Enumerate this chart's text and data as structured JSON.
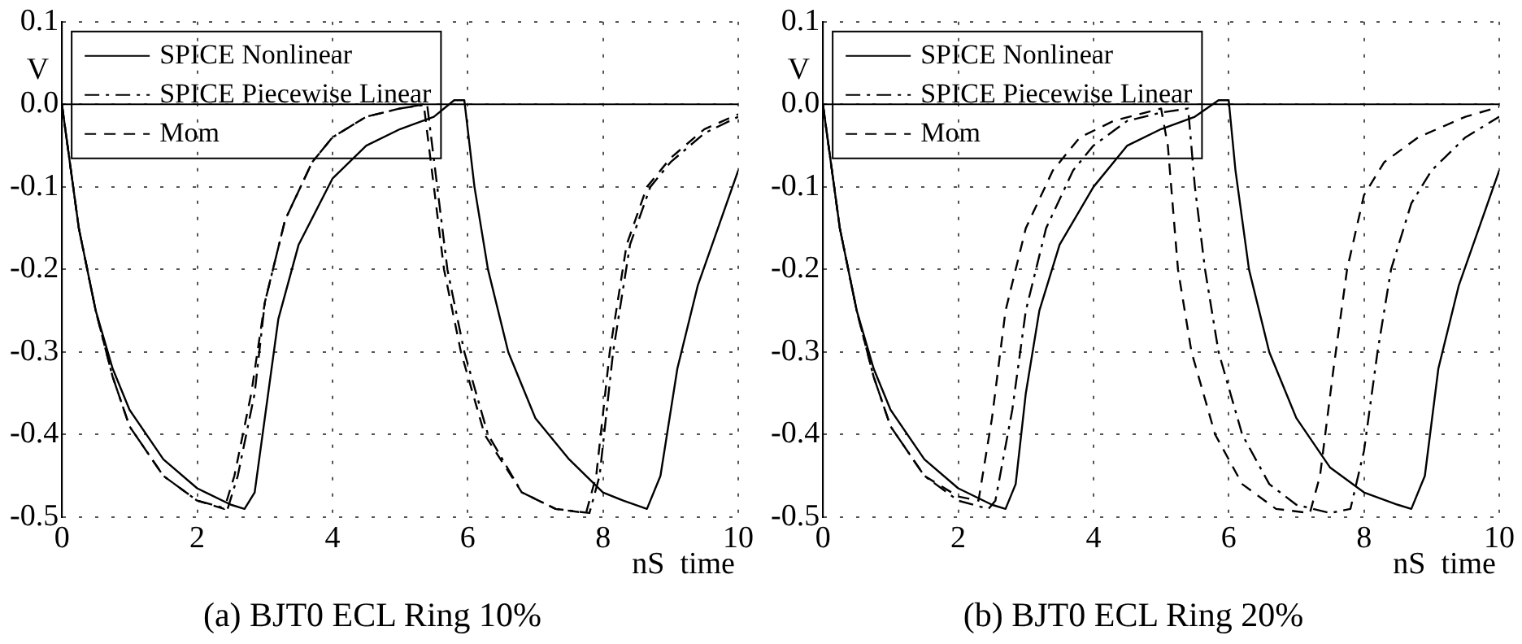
{
  "chart_data": [
    {
      "type": "line",
      "title": "(a) BJT0 ECL Ring 10%",
      "xlabel": "nS  time",
      "ylabel": "V",
      "xlim": [
        0,
        10
      ],
      "xticks": [
        0,
        2,
        4,
        6,
        8,
        10
      ],
      "ylim": [
        -0.5,
        0.1
      ],
      "yticks": [
        0.1,
        {
          "value": 0,
          "label": "0.0"
        },
        -0.1,
        -0.2,
        -0.3,
        -0.4,
        -0.5
      ],
      "grid": true,
      "legend": "top left",
      "marker": "none",
      "ref_lines": [
        {
          "axis": "y",
          "value": 0,
          "color": "#000000"
        }
      ],
      "series": [
        {
          "name": "SPICE Nonlinear",
          "color": "#000000",
          "line_style": "solid",
          "x": [
            0,
            0.25,
            0.5,
            0.75,
            1,
            1.5,
            2,
            2.5,
            2.7,
            2.85,
            3,
            3.2,
            3.5,
            4,
            4.5,
            5,
            5.5,
            5.8,
            5.95,
            6.1,
            6.3,
            6.6,
            7,
            7.5,
            8,
            8.3,
            8.65,
            8.85,
            9.1,
            9.4,
            9.7,
            10
          ],
          "values": [
            0,
            -0.15,
            -0.25,
            -0.32,
            -0.37,
            -0.43,
            -0.465,
            -0.485,
            -0.49,
            -0.47,
            -0.38,
            -0.26,
            -0.17,
            -0.09,
            -0.05,
            -0.03,
            -0.015,
            0.005,
            0.005,
            -0.1,
            -0.2,
            -0.3,
            -0.38,
            -0.43,
            -0.47,
            -0.48,
            -0.49,
            -0.45,
            -0.32,
            -0.22,
            -0.15,
            -0.08
          ]
        },
        {
          "name": "SPICE Piecewise Linear",
          "color": "#000000",
          "line_style": "dashdot",
          "x": [
            0,
            0.25,
            0.5,
            0.75,
            1,
            1.5,
            2,
            2.45,
            2.6,
            2.85,
            3,
            3.3,
            3.7,
            4,
            4.5,
            5,
            5.4,
            5.55,
            5.7,
            5.95,
            6.3,
            6.8,
            7.3,
            7.8,
            7.95,
            8.15,
            8.4,
            8.7,
            9,
            9.5,
            10
          ],
          "values": [
            0,
            -0.15,
            -0.25,
            -0.33,
            -0.39,
            -0.45,
            -0.48,
            -0.49,
            -0.45,
            -0.35,
            -0.24,
            -0.14,
            -0.07,
            -0.04,
            -0.015,
            -0.005,
            0,
            -0.1,
            -0.2,
            -0.3,
            -0.4,
            -0.47,
            -0.49,
            -0.495,
            -0.45,
            -0.3,
            -0.17,
            -0.1,
            -0.07,
            -0.035,
            -0.015
          ]
        },
        {
          "name": "Mom",
          "color": "#000000",
          "line_style": "dashed",
          "x": [
            0,
            0.25,
            0.5,
            0.75,
            1,
            1.5,
            2,
            2.4,
            2.55,
            2.8,
            3,
            3.3,
            3.7,
            4,
            4.5,
            5,
            5.35,
            5.5,
            5.65,
            5.9,
            6.25,
            6.8,
            7.3,
            7.75,
            7.9,
            8.1,
            8.35,
            8.65,
            9,
            9.5,
            10
          ],
          "values": [
            0,
            -0.15,
            -0.25,
            -0.33,
            -0.39,
            -0.45,
            -0.48,
            -0.49,
            -0.45,
            -0.35,
            -0.24,
            -0.14,
            -0.07,
            -0.04,
            -0.015,
            -0.005,
            0,
            -0.1,
            -0.2,
            -0.3,
            -0.4,
            -0.47,
            -0.49,
            -0.495,
            -0.45,
            -0.3,
            -0.17,
            -0.1,
            -0.065,
            -0.03,
            -0.012
          ]
        }
      ]
    },
    {
      "type": "line",
      "title": "(b) BJT0 ECL Ring 20%",
      "xlabel": "nS  time",
      "ylabel": "V",
      "xlim": [
        0,
        10
      ],
      "xticks": [
        0,
        2,
        4,
        6,
        8,
        10
      ],
      "ylim": [
        -0.5,
        0.1
      ],
      "yticks": [
        0.1,
        {
          "value": 0,
          "label": "0.0"
        },
        -0.1,
        -0.2,
        -0.3,
        -0.4,
        -0.5
      ],
      "grid": true,
      "legend": "top left",
      "marker": "none",
      "ref_lines": [
        {
          "axis": "y",
          "value": 0,
          "color": "#000000"
        }
      ],
      "series": [
        {
          "name": "SPICE Nonlinear",
          "color": "#000000",
          "line_style": "solid",
          "x": [
            0,
            0.25,
            0.5,
            0.75,
            1,
            1.5,
            2,
            2.5,
            2.7,
            2.85,
            3,
            3.2,
            3.5,
            4,
            4.5,
            5,
            5.5,
            5.85,
            6,
            6.1,
            6.3,
            6.6,
            7,
            7.5,
            8,
            8.5,
            8.7,
            8.9,
            9.1,
            9.4,
            9.7,
            10
          ],
          "values": [
            0,
            -0.15,
            -0.25,
            -0.32,
            -0.37,
            -0.43,
            -0.465,
            -0.485,
            -0.49,
            -0.46,
            -0.35,
            -0.25,
            -0.17,
            -0.1,
            -0.05,
            -0.03,
            -0.015,
            0.005,
            0.005,
            -0.08,
            -0.2,
            -0.3,
            -0.38,
            -0.44,
            -0.47,
            -0.485,
            -0.49,
            -0.45,
            -0.32,
            -0.22,
            -0.15,
            -0.08
          ]
        },
        {
          "name": "SPICE Piecewise Linear",
          "color": "#000000",
          "line_style": "dashdot",
          "x": [
            0,
            0.25,
            0.5,
            0.75,
            1,
            1.5,
            2,
            2.45,
            2.55,
            2.8,
            3,
            3.3,
            3.7,
            4,
            4.5,
            5,
            5.4,
            5.5,
            5.65,
            5.85,
            6.2,
            6.6,
            7,
            7.5,
            7.8,
            8,
            8.2,
            8.4,
            8.7,
            9,
            9.5,
            10
          ],
          "values": [
            0,
            -0.15,
            -0.25,
            -0.33,
            -0.39,
            -0.45,
            -0.48,
            -0.49,
            -0.48,
            -0.37,
            -0.25,
            -0.15,
            -0.08,
            -0.05,
            -0.02,
            -0.01,
            -0.005,
            -0.1,
            -0.2,
            -0.3,
            -0.4,
            -0.46,
            -0.485,
            -0.495,
            -0.49,
            -0.42,
            -0.3,
            -0.2,
            -0.12,
            -0.08,
            -0.04,
            -0.015
          ]
        },
        {
          "name": "Mom",
          "color": "#000000",
          "line_style": "dashed",
          "x": [
            0,
            0.25,
            0.5,
            0.75,
            1,
            1.5,
            2,
            2.3,
            2.5,
            2.7,
            3,
            3.4,
            3.8,
            4.3,
            5,
            5.1,
            5.25,
            5.45,
            5.8,
            6.2,
            6.7,
            7.2,
            7.35,
            7.55,
            7.75,
            8,
            8.3,
            8.8,
            9.5,
            10
          ],
          "values": [
            0,
            -0.15,
            -0.25,
            -0.33,
            -0.39,
            -0.45,
            -0.475,
            -0.48,
            -0.38,
            -0.25,
            -0.15,
            -0.08,
            -0.04,
            -0.02,
            -0.005,
            -0.05,
            -0.2,
            -0.3,
            -0.4,
            -0.46,
            -0.49,
            -0.495,
            -0.45,
            -0.32,
            -0.2,
            -0.11,
            -0.07,
            -0.04,
            -0.015,
            -0.003
          ]
        }
      ]
    }
  ]
}
